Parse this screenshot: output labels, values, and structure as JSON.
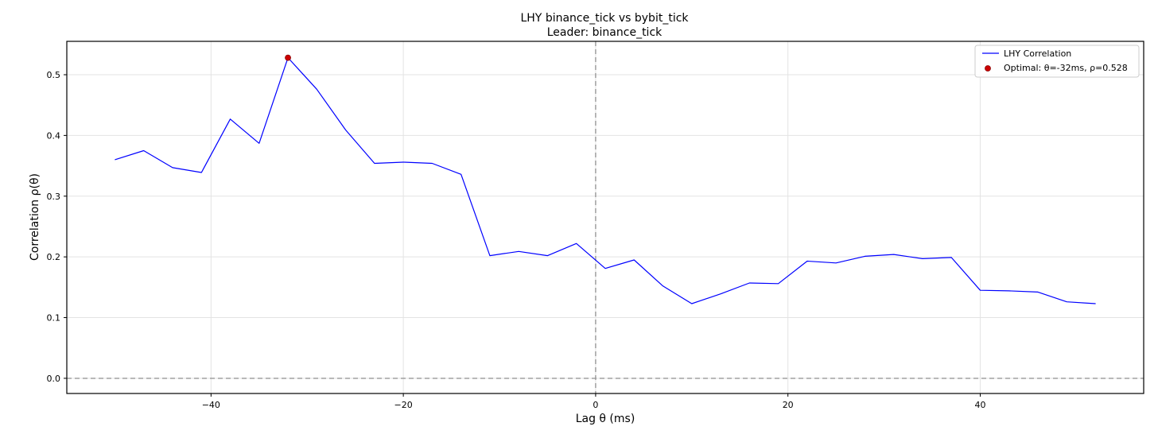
{
  "chart_data": {
    "type": "line",
    "title": "LHY binance_tick vs bybit_tick",
    "subtitle": "Leader: binance_tick",
    "xlabel": "Lag θ (ms)",
    "ylabel": "Correlation ρ(θ)",
    "xlim": [
      -55,
      57
    ],
    "ylim": [
      -0.025,
      0.555
    ],
    "xticks": [
      -40,
      -20,
      0,
      20,
      40
    ],
    "xtick_labels": [
      "−40",
      "−20",
      "0",
      "20",
      "40"
    ],
    "yticks": [
      0.0,
      0.1,
      0.2,
      0.3,
      0.4,
      0.5
    ],
    "ytick_labels": [
      "0.0",
      "0.1",
      "0.2",
      "0.3",
      "0.4",
      "0.5"
    ],
    "grid": true,
    "legend_position": "top-right",
    "series": [
      {
        "name": "LHY Correlation",
        "color": "#0000ff",
        "x": [
          -50,
          -47,
          -44,
          -41,
          -38,
          -35,
          -32,
          -29,
          -26,
          -23,
          -20,
          -17,
          -14,
          -11,
          -8,
          -5,
          -2,
          1,
          4,
          7,
          10,
          13,
          16,
          19,
          22,
          25,
          28,
          31,
          34,
          37,
          40,
          43,
          46,
          49,
          52
        ],
        "y": [
          0.36,
          0.375,
          0.347,
          0.339,
          0.427,
          0.387,
          0.528,
          0.476,
          0.409,
          0.354,
          0.356,
          0.354,
          0.336,
          0.202,
          0.209,
          0.202,
          0.222,
          0.181,
          0.195,
          0.152,
          0.123,
          0.139,
          0.157,
          0.156,
          0.193,
          0.19,
          0.201,
          0.204,
          0.197,
          0.199,
          0.145,
          0.144,
          0.142,
          0.126,
          0.123
        ]
      }
    ],
    "optimal_point": {
      "label": "Optimal: θ=-32ms, ρ=0.528",
      "x": -32,
      "y": 0.528,
      "color": "#cc0000"
    },
    "reference_lines": {
      "vertical_x": 0,
      "horizontal_y": 0,
      "color": "#999999"
    }
  }
}
